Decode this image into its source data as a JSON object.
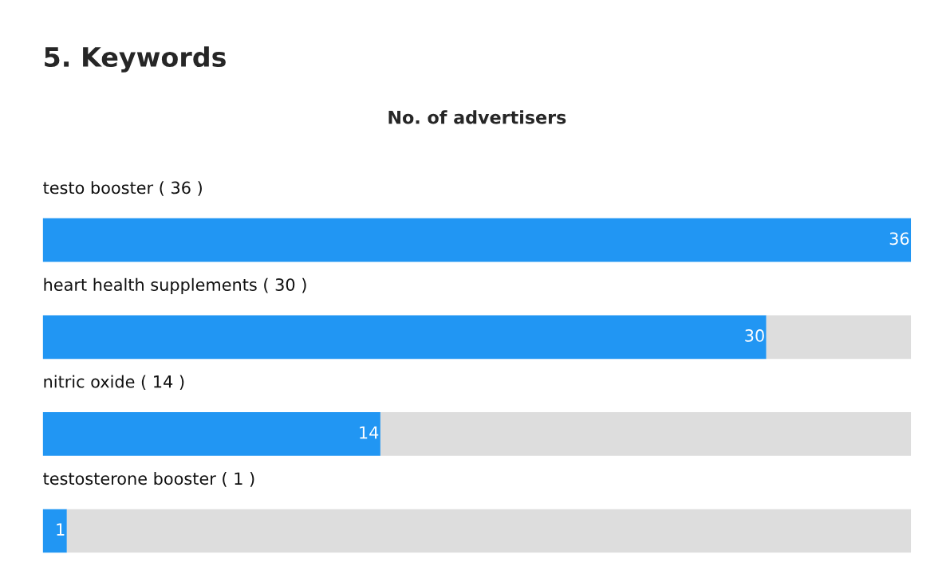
{
  "chart_data": {
    "type": "bar",
    "orientation": "horizontal",
    "stacked": true,
    "title": "5. Keywords",
    "subtitle": "No. of advertisers",
    "categories": [
      "testo booster ( 36 )",
      "heart health supplements ( 30 )",
      "nitric oxide ( 14 )",
      "testosterone booster ( 1 )"
    ],
    "series": [
      {
        "color": "#2196f3",
        "values": [
          36,
          30,
          14,
          1
        ],
        "value_labels": [
          "36",
          "30",
          "14",
          "1"
        ]
      },
      {
        "color": "#dddddd",
        "values": [
          0,
          6,
          22,
          35
        ]
      }
    ],
    "xlim": [
      0,
      36
    ]
  }
}
